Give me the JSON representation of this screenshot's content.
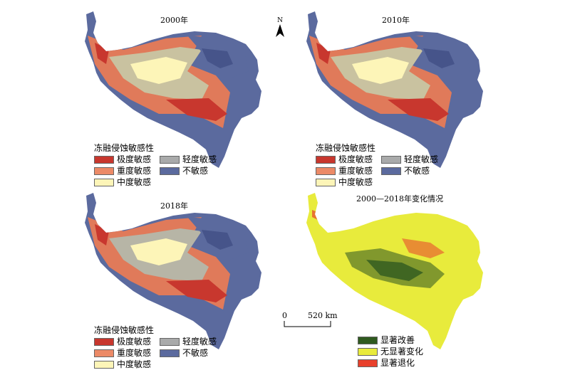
{
  "panels": [
    {
      "title": "2000年"
    },
    {
      "title": "2010年"
    },
    {
      "title": "2018年"
    },
    {
      "title": "2000—2018年变化情况"
    }
  ],
  "sensitivity_legend": {
    "title": "冻融侵蚀敏感性",
    "items": [
      {
        "label": "极度敏感",
        "color": "#c8372e"
      },
      {
        "label": "轻度敏感",
        "color": "#a9aaaa"
      },
      {
        "label": "重度敏感",
        "color": "#ec8a67"
      },
      {
        "label": "不敏感",
        "color": "#5b6a9e"
      },
      {
        "label": "中度敏感",
        "color": "#fdf5b8"
      }
    ]
  },
  "change_legend": {
    "items": [
      {
        "label": "显著改善",
        "color": "#2f5a1f"
      },
      {
        "label": "无显著变化",
        "color": "#e8eb3c"
      },
      {
        "label": "显著退化",
        "color": "#e8402c"
      }
    ]
  },
  "north_arrow": {
    "label": "N"
  },
  "scale_bar": {
    "zero": "0",
    "distance": "520 km"
  }
}
